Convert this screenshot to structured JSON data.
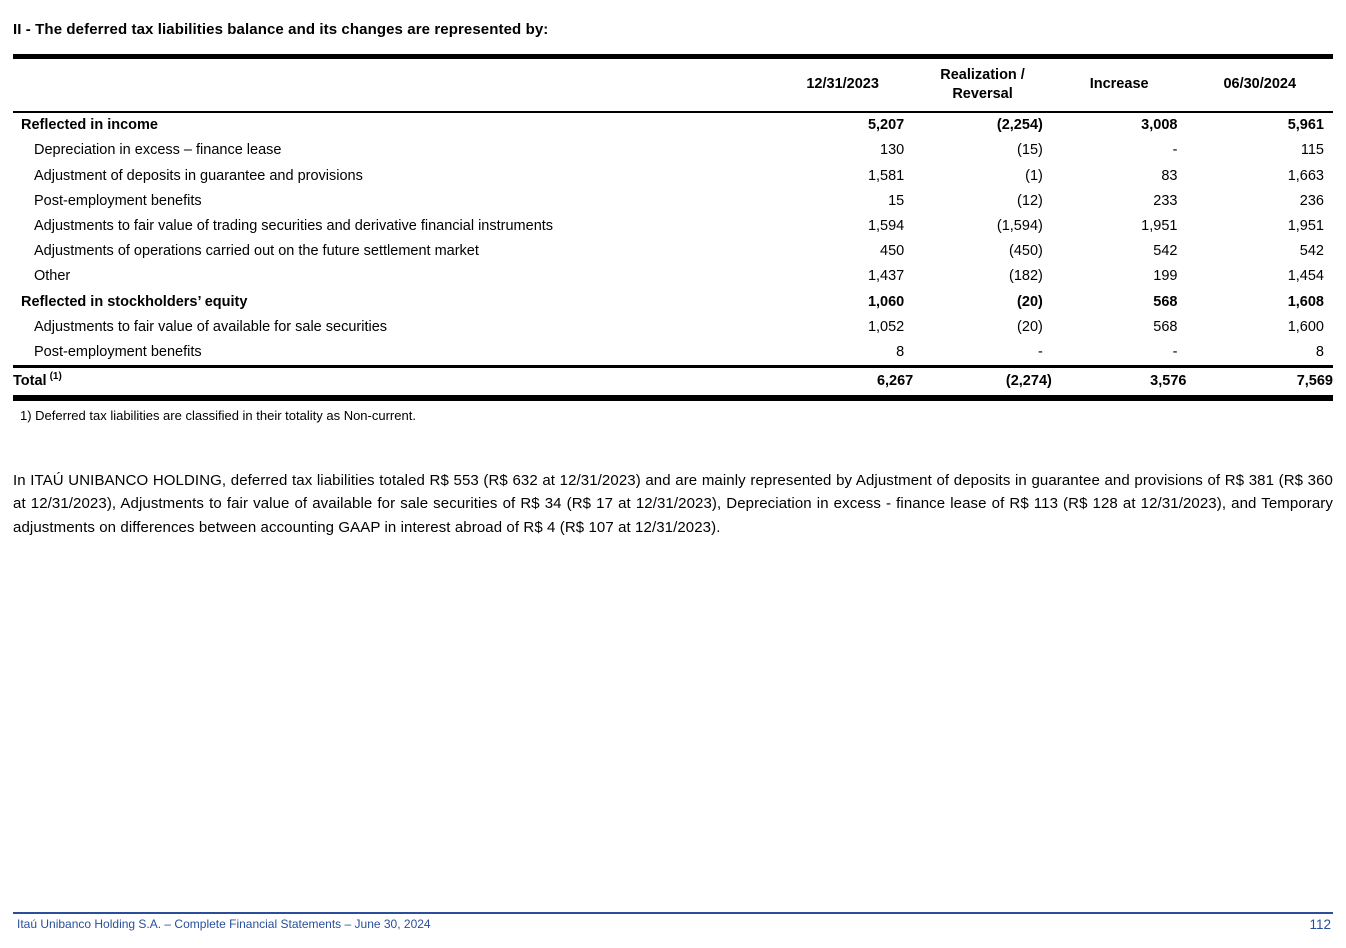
{
  "page": {
    "title": "II - The deferred tax liabilities balance and its changes are represented by:",
    "footnote": "1) Deferred tax liabilities are classified in their totality as Non-current.",
    "paragraph": "In ITAÚ UNIBANCO HOLDING, deferred tax liabilities totaled R$ 553 (R$ 632 at 12/31/2023) and are mainly represented by Adjustment of deposits in guarantee and provisions of R$ 381 (R$ 360 at 12/31/2023), Adjustments to fair value of available for sale securities of R$ 34 (R$ 17 at 12/31/2023), Depreciation in excess - finance lease of R$ 113 (R$ 128 at 12/31/2023), and Temporary adjustments on differences between accounting GAAP in interest abroad of R$ 4 (R$ 107 at 12/31/2023)."
  },
  "footer": {
    "left_text": "Itaú Unibanco Holding S.A. – Complete Financial Statements – June 30, 2024",
    "page_number": "112",
    "accent_color": "#2a4e9c"
  },
  "table": {
    "columns": [
      "12/31/2023",
      "Realization / Reversal",
      "Increase",
      "06/30/2024"
    ],
    "rows": [
      {
        "label": "Reflected in income",
        "bold": true,
        "indent": false,
        "values": [
          "5,207",
          "(2,254)",
          "3,008",
          "5,961"
        ]
      },
      {
        "label": "Depreciation in excess – finance lease",
        "bold": false,
        "indent": true,
        "values": [
          "130",
          "(15)",
          "-",
          "115"
        ]
      },
      {
        "label": "Adjustment of deposits in guarantee and provisions",
        "bold": false,
        "indent": true,
        "values": [
          "1,581",
          "(1)",
          "83",
          "1,663"
        ]
      },
      {
        "label": "Post-employment benefits",
        "bold": false,
        "indent": true,
        "values": [
          "15",
          "(12)",
          "233",
          "236"
        ]
      },
      {
        "label": "Adjustments to fair value of trading securities and derivative financial instruments",
        "bold": false,
        "indent": true,
        "values": [
          "1,594",
          "(1,594)",
          "1,951",
          "1,951"
        ]
      },
      {
        "label": "Adjustments of operations carried out on the future settlement market",
        "bold": false,
        "indent": true,
        "values": [
          "450",
          "(450)",
          "542",
          "542"
        ]
      },
      {
        "label": "Other",
        "bold": false,
        "indent": true,
        "values": [
          "1,437",
          "(182)",
          "199",
          "1,454"
        ]
      },
      {
        "label": "Reflected in stockholders’ equity",
        "bold": true,
        "indent": false,
        "values": [
          "1,060",
          "(20)",
          "568",
          "1,608"
        ]
      },
      {
        "label": "Adjustments to fair value of available for sale securities",
        "bold": false,
        "indent": true,
        "values": [
          "1,052",
          "(20)",
          "568",
          "1,600"
        ]
      },
      {
        "label": "Post-employment benefits",
        "bold": false,
        "indent": true,
        "values": [
          "8",
          "-",
          "-",
          "8"
        ]
      },
      {
        "label": "Total",
        "superscript": "(1)",
        "bold": true,
        "indent": false,
        "total": true,
        "values": [
          "6,267",
          "(2,274)",
          "3,576",
          "7,569"
        ]
      }
    ]
  }
}
